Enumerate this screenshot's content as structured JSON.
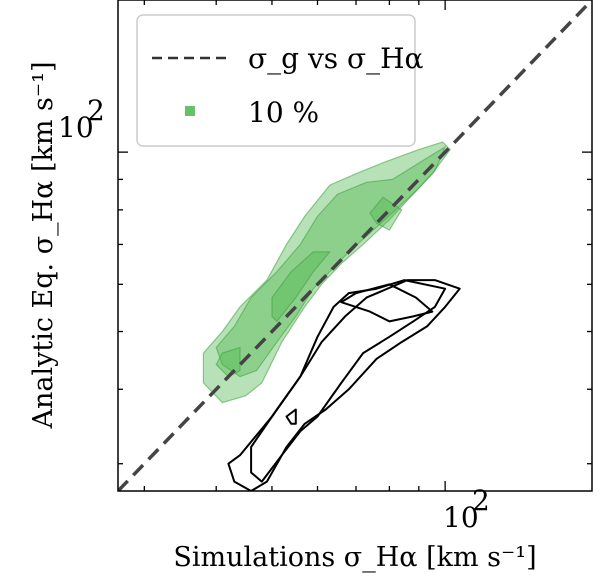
{
  "chart_data": {
    "type": "scatter",
    "subtype": "contour",
    "xlabel": "Simulations σ_Hα [km s⁻¹]",
    "ylabel": "Analytic Eq. σ_Hα [km s⁻¹]",
    "x_tick_label": {
      "base": "10",
      "exp": "2"
    },
    "y_tick_label": {
      "base": "10",
      "exp": "2"
    },
    "xscale": "log",
    "yscale": "log",
    "xlim": [
      27,
      180
    ],
    "ylim": [
      27,
      180
    ],
    "major_tick": 100,
    "minor_ticks": [
      30,
      40,
      50,
      60,
      70,
      80,
      90,
      200
    ],
    "grid": false,
    "legend_position": "top-left",
    "legend": [
      {
        "label": "σ_g vs σ_Hα",
        "style": "dashed-line",
        "color": "#444444"
      },
      {
        "label": "10 %",
        "style": "filled-square",
        "color": "#66c266"
      }
    ],
    "one_to_one_line": {
      "x": [
        27,
        180
      ],
      "y": [
        27,
        180
      ],
      "color": "#444444",
      "style": "dashed"
    },
    "green_contours": [
      {
        "level": "outer",
        "points": [
          [
            41,
            50
          ],
          [
            44,
            55
          ],
          [
            49,
            61
          ],
          [
            53,
            70
          ],
          [
            57,
            78
          ],
          [
            63,
            88
          ],
          [
            70,
            92
          ],
          [
            78,
            96
          ],
          [
            90,
            101
          ],
          [
            99,
            104
          ],
          [
            102,
            101
          ],
          [
            95,
            92
          ],
          [
            88,
            85
          ],
          [
            80,
            77
          ],
          [
            72,
            70
          ],
          [
            66,
            65
          ],
          [
            61,
            60
          ],
          [
            57,
            55
          ],
          [
            52,
            48
          ],
          [
            48,
            41
          ],
          [
            45,
            39
          ],
          [
            41,
            38
          ],
          [
            38,
            41
          ],
          [
            38,
            46
          ]
        ]
      },
      {
        "level": "middle",
        "points": [
          [
            43,
            51
          ],
          [
            46,
            57
          ],
          [
            51,
            63
          ],
          [
            56,
            70
          ],
          [
            60,
            78
          ],
          [
            65,
            85
          ],
          [
            73,
            89
          ],
          [
            81,
            90
          ],
          [
            95,
            99
          ],
          [
            100,
            102
          ],
          [
            96,
            93
          ],
          [
            90,
            87
          ],
          [
            82,
            80
          ],
          [
            75,
            74
          ],
          [
            68,
            68
          ],
          [
            63,
            63
          ],
          [
            59,
            59
          ],
          [
            55,
            53
          ],
          [
            51,
            48
          ],
          [
            47,
            43
          ],
          [
            44,
            42
          ],
          [
            41,
            44
          ],
          [
            40,
            47
          ]
        ]
      },
      {
        "level": "inner-a",
        "points": [
          [
            41,
            46
          ],
          [
            44,
            47
          ],
          [
            44,
            43
          ],
          [
            42,
            42
          ],
          [
            40,
            44
          ]
        ]
      },
      {
        "level": "inner-b",
        "points": [
          [
            50,
            57
          ],
          [
            54,
            63
          ],
          [
            59,
            68
          ],
          [
            63,
            68
          ],
          [
            59,
            63
          ],
          [
            55,
            57
          ],
          [
            51,
            52
          ],
          [
            50,
            53
          ]
        ]
      },
      {
        "level": "inner-c",
        "points": [
          [
            74,
            79
          ],
          [
            78,
            84
          ],
          [
            84,
            80
          ],
          [
            80,
            74
          ],
          [
            76,
            76
          ]
        ]
      }
    ],
    "black_contours": [
      {
        "level": "outer",
        "points": [
          [
            44,
            31
          ],
          [
            50,
            36
          ],
          [
            56,
            42
          ],
          [
            61,
            48
          ],
          [
            67,
            53
          ],
          [
            73,
            57
          ],
          [
            86,
            61
          ],
          [
            96,
            61
          ],
          [
            106,
            59
          ],
          [
            100,
            55
          ],
          [
            93,
            51
          ],
          [
            84,
            48
          ],
          [
            76,
            45
          ],
          [
            68,
            40
          ],
          [
            62,
            37
          ],
          [
            57,
            35
          ],
          [
            53,
            32
          ],
          [
            49,
            28
          ],
          [
            46,
            27
          ],
          [
            43,
            28
          ],
          [
            42,
            30
          ]
        ]
      },
      {
        "level": "inner",
        "points": [
          [
            46,
            32
          ],
          [
            51,
            37
          ],
          [
            56,
            42
          ],
          [
            60,
            49
          ],
          [
            64,
            55
          ],
          [
            68,
            58
          ],
          [
            76,
            59
          ],
          [
            85,
            61
          ],
          [
            100,
            59
          ],
          [
            96,
            55
          ],
          [
            88,
            52
          ],
          [
            80,
            49
          ],
          [
            72,
            46
          ],
          [
            66,
            41
          ],
          [
            60,
            36
          ],
          [
            56,
            34
          ],
          [
            52,
            31
          ],
          [
            48,
            28
          ],
          [
            46,
            29
          ]
        ]
      },
      {
        "level": "island-a",
        "points": [
          [
            80,
            52
          ],
          [
            74,
            54
          ],
          [
            66,
            56
          ],
          [
            70,
            58
          ],
          [
            80,
            60
          ],
          [
            89,
            57
          ],
          [
            95,
            54
          ],
          [
            88,
            53
          ]
        ]
      },
      {
        "level": "island-b",
        "points": [
          [
            53,
            36
          ],
          [
            55,
            37
          ],
          [
            55,
            35
          ],
          [
            54,
            35
          ]
        ]
      }
    ]
  }
}
